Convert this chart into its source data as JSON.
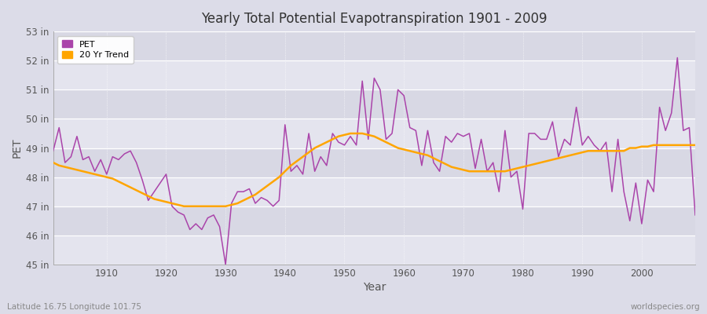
{
  "title": "Yearly Total Potential Evapotranspiration 1901 - 2009",
  "xlabel": "Year",
  "ylabel": "PET",
  "subtitle_left": "Latitude 16.75 Longitude 101.75",
  "subtitle_right": "worldspecies.org",
  "pet_color": "#AA44AA",
  "trend_color": "#FFA500",
  "bg_color": "#DCDCE8",
  "ylim_min": 45,
  "ylim_max": 53,
  "yticks": [
    45,
    46,
    47,
    48,
    49,
    50,
    51,
    52,
    53
  ],
  "ytick_labels": [
    "45 in",
    "46 in",
    "47 in",
    "48 in",
    "49 in",
    "50 in",
    "51 in",
    "52 in",
    "53 in"
  ],
  "xticks": [
    1910,
    1920,
    1930,
    1940,
    1950,
    1960,
    1970,
    1980,
    1990,
    2000
  ],
  "years": [
    1901,
    1902,
    1903,
    1904,
    1905,
    1906,
    1907,
    1908,
    1909,
    1910,
    1911,
    1912,
    1913,
    1914,
    1915,
    1916,
    1917,
    1918,
    1919,
    1920,
    1921,
    1922,
    1923,
    1924,
    1925,
    1926,
    1927,
    1928,
    1929,
    1930,
    1931,
    1932,
    1933,
    1934,
    1935,
    1936,
    1937,
    1938,
    1939,
    1940,
    1941,
    1942,
    1943,
    1944,
    1945,
    1946,
    1947,
    1948,
    1949,
    1950,
    1951,
    1952,
    1953,
    1954,
    1955,
    1956,
    1957,
    1958,
    1959,
    1960,
    1961,
    1962,
    1963,
    1964,
    1965,
    1966,
    1967,
    1968,
    1969,
    1970,
    1971,
    1972,
    1973,
    1974,
    1975,
    1976,
    1977,
    1978,
    1979,
    1980,
    1981,
    1982,
    1983,
    1984,
    1985,
    1986,
    1987,
    1988,
    1989,
    1990,
    1991,
    1992,
    1993,
    1994,
    1995,
    1996,
    1997,
    1998,
    1999,
    2000,
    2001,
    2002,
    2003,
    2004,
    2005,
    2006,
    2007,
    2008,
    2009
  ],
  "pet_values": [
    48.9,
    49.7,
    48.5,
    48.7,
    49.4,
    48.6,
    48.7,
    48.2,
    48.6,
    48.1,
    48.7,
    48.6,
    48.8,
    48.9,
    48.5,
    47.9,
    47.2,
    47.5,
    47.8,
    48.1,
    47.0,
    46.8,
    46.7,
    46.2,
    46.4,
    46.2,
    46.6,
    46.7,
    46.3,
    45.0,
    47.1,
    47.5,
    47.5,
    47.6,
    47.1,
    47.3,
    47.2,
    47.0,
    47.2,
    49.8,
    48.2,
    48.4,
    48.1,
    49.5,
    48.2,
    48.7,
    48.4,
    49.5,
    49.2,
    49.1,
    49.4,
    49.1,
    51.3,
    49.3,
    51.4,
    51.0,
    49.3,
    49.5,
    51.0,
    50.8,
    49.7,
    49.6,
    48.4,
    49.6,
    48.5,
    48.2,
    49.4,
    49.2,
    49.5,
    49.4,
    49.5,
    48.3,
    49.3,
    48.2,
    48.5,
    47.5,
    49.6,
    48.0,
    48.2,
    46.9,
    49.5,
    49.5,
    49.3,
    49.3,
    49.9,
    48.7,
    49.3,
    49.1,
    50.4,
    49.1,
    49.4,
    49.1,
    48.9,
    49.2,
    47.5,
    49.3,
    47.5,
    46.5,
    47.8,
    46.4,
    47.9,
    47.5,
    50.4,
    49.6,
    50.2,
    52.1,
    49.6,
    49.7,
    46.7
  ],
  "trend_years": [
    1901,
    1902,
    1903,
    1904,
    1905,
    1906,
    1907,
    1908,
    1909,
    1910,
    1911,
    1912,
    1913,
    1914,
    1915,
    1916,
    1917,
    1918,
    1919,
    1920,
    1921,
    1922,
    1923,
    1924,
    1925,
    1926,
    1927,
    1928,
    1929,
    1930,
    1931,
    1932,
    1933,
    1934,
    1935,
    1936,
    1937,
    1938,
    1939,
    1940,
    1941,
    1942,
    1943,
    1944,
    1945,
    1946,
    1947,
    1948,
    1949,
    1950,
    1951,
    1952,
    1953,
    1954,
    1955,
    1956,
    1957,
    1958,
    1959,
    1960,
    1961,
    1962,
    1963,
    1964,
    1965,
    1966,
    1967,
    1968,
    1969,
    1970,
    1971,
    1972,
    1973,
    1974,
    1975,
    1976,
    1977,
    1978,
    1979,
    1980,
    1981,
    1982,
    1983,
    1984,
    1985,
    1986,
    1987,
    1988,
    1989,
    1990,
    1991,
    1992,
    1993,
    1994,
    1995,
    1996,
    1997,
    1998,
    1999,
    2000,
    2001,
    2002,
    2003,
    2004,
    2005,
    2006,
    2007,
    2008,
    2009
  ],
  "trend_values": [
    48.5,
    48.4,
    48.35,
    48.3,
    48.25,
    48.2,
    48.15,
    48.1,
    48.05,
    48.0,
    47.95,
    47.85,
    47.75,
    47.65,
    47.55,
    47.45,
    47.35,
    47.25,
    47.2,
    47.15,
    47.1,
    47.05,
    47.0,
    47.0,
    47.0,
    47.0,
    47.0,
    47.0,
    47.0,
    47.0,
    47.05,
    47.1,
    47.2,
    47.3,
    47.4,
    47.55,
    47.7,
    47.85,
    48.0,
    48.2,
    48.4,
    48.55,
    48.7,
    48.85,
    49.0,
    49.1,
    49.2,
    49.3,
    49.4,
    49.45,
    49.5,
    49.5,
    49.5,
    49.45,
    49.4,
    49.3,
    49.2,
    49.1,
    49.0,
    48.95,
    48.9,
    48.85,
    48.8,
    48.75,
    48.65,
    48.55,
    48.45,
    48.35,
    48.3,
    48.25,
    48.2,
    48.2,
    48.2,
    48.2,
    48.2,
    48.2,
    48.2,
    48.25,
    48.3,
    48.35,
    48.4,
    48.45,
    48.5,
    48.55,
    48.6,
    48.65,
    48.7,
    48.75,
    48.8,
    48.85,
    48.9,
    48.9,
    48.9,
    48.9,
    48.9,
    48.9,
    48.9,
    49.0,
    49.0,
    49.05,
    49.05,
    49.1,
    49.1,
    49.1,
    49.1,
    49.1,
    49.1,
    49.1,
    49.1
  ]
}
